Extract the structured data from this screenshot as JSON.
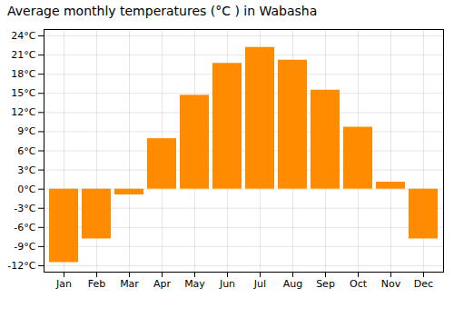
{
  "chart_data": {
    "type": "bar",
    "title": "Average monthly temperatures (°C ) in Wabasha",
    "categories": [
      "Jan",
      "Feb",
      "Mar",
      "Apr",
      "May",
      "Jun",
      "Jul",
      "Aug",
      "Sep",
      "Oct",
      "Nov",
      "Dec"
    ],
    "values": [
      -11.5,
      -7.8,
      -0.9,
      7.9,
      14.7,
      19.7,
      22.2,
      20.2,
      15.5,
      9.7,
      1.1,
      -7.8
    ],
    "color": "#FF8C00",
    "ylim": [
      -13,
      25
    ],
    "yticks": [
      {
        "value": -12,
        "label": "-12°C"
      },
      {
        "value": -9,
        "label": "-9°C"
      },
      {
        "value": -6,
        "label": "-6°C"
      },
      {
        "value": -3,
        "label": "-3°C"
      },
      {
        "value": 0,
        "label": "0°C"
      },
      {
        "value": 3,
        "label": "3°C"
      },
      {
        "value": 6,
        "label": "6°C"
      },
      {
        "value": 9,
        "label": "9°C"
      },
      {
        "value": 12,
        "label": "12°C"
      },
      {
        "value": 15,
        "label": "15°C"
      },
      {
        "value": 18,
        "label": "18°C"
      },
      {
        "value": 21,
        "label": "21°C"
      },
      {
        "value": 24,
        "label": "24°C"
      }
    ],
    "grid": true
  }
}
